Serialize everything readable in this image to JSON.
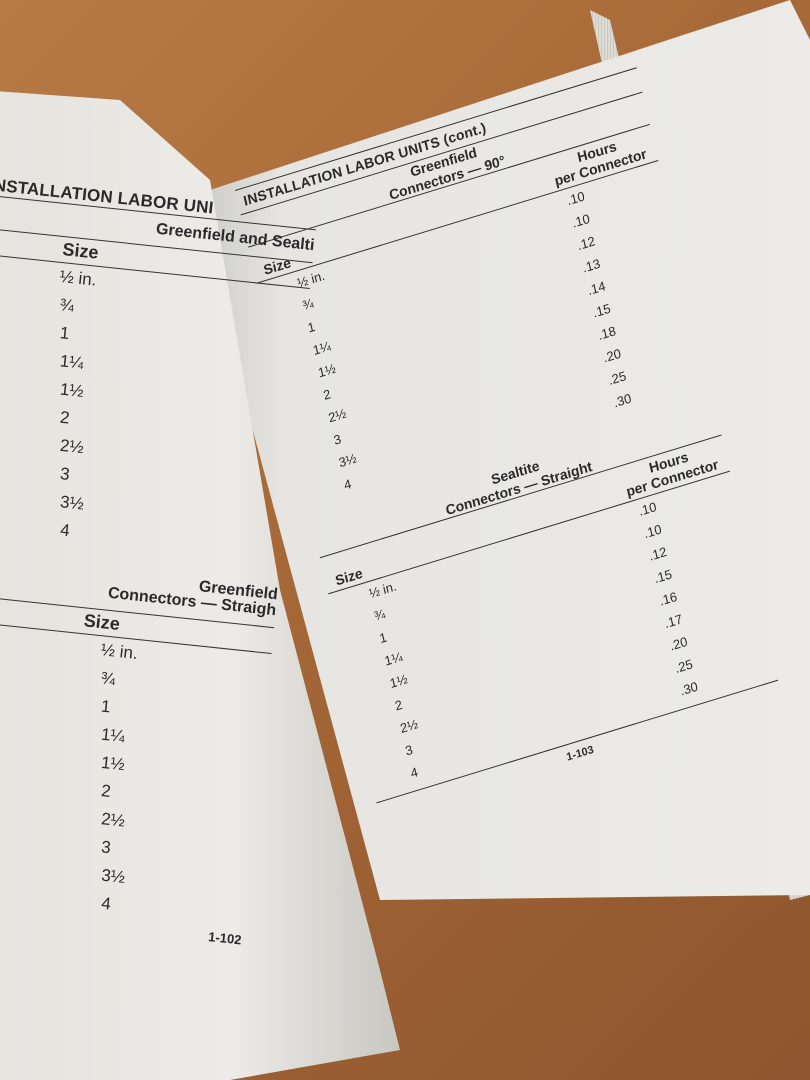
{
  "right_page": {
    "header": "INSTALLATION LABOR UNITS (cont.)",
    "tables": [
      {
        "title_line1": "Greenfield",
        "title_line2": "Connectors — 90°",
        "col_size": "Size",
        "col_hours_line1": "Hours",
        "col_hours_line2": "per Connector",
        "sizes": [
          "½ in.",
          "¾",
          "1",
          "1¼",
          "1½",
          "2",
          "2½",
          "3",
          "3½",
          "4"
        ],
        "hours": [
          ".10",
          ".10",
          ".12",
          ".13",
          ".14",
          ".15",
          ".18",
          ".20",
          ".25",
          ".30"
        ]
      },
      {
        "title_line1": "Sealtite",
        "title_line2": "Connectors — Straight",
        "col_size": "Size",
        "col_hours_line1": "Hours",
        "col_hours_line2": "per Connector",
        "sizes": [
          "½ in.",
          "¾",
          "1",
          "1¼",
          "1½",
          "2",
          "2½",
          "3",
          "4"
        ],
        "hours": [
          ".10",
          ".10",
          ".12",
          ".15",
          ".16",
          ".17",
          ".20",
          ".25",
          ".30"
        ]
      }
    ],
    "page_number": "1-103"
  },
  "left_page": {
    "header": "INSTALLATION LABOR UNI",
    "tables": [
      {
        "title": "Greenfield and Sealti",
        "col_size": "Size",
        "sizes": [
          "½ in.",
          "¾",
          "1",
          "1¼",
          "1½",
          "2",
          "2½",
          "3",
          "3½",
          "4"
        ]
      },
      {
        "title_line1": "Greenfield",
        "title_line2": "Connectors — Straigh",
        "col_size": "Size",
        "sizes": [
          "½ in.",
          "¾",
          "1",
          "1¼",
          "1½",
          "2",
          "2½",
          "3",
          "3½",
          "4"
        ]
      }
    ],
    "page_number": "1-102"
  }
}
